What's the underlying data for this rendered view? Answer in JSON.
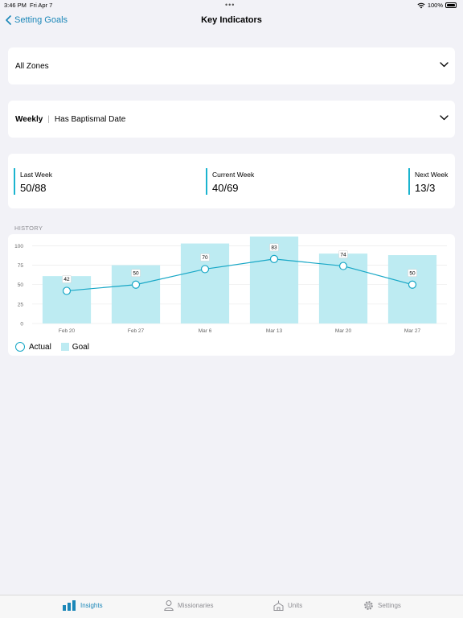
{
  "status_bar": {
    "time": "3:46 PM",
    "date": "Fri Apr 7",
    "dots": "•••",
    "battery": "100%"
  },
  "nav": {
    "back_label": "Setting Goals",
    "title": "Key Indicators"
  },
  "zone_filter": {
    "value": "All Zones"
  },
  "period_filter": {
    "period": "Weekly",
    "indicator": "Has Baptismal Date"
  },
  "kpis": {
    "last_week": {
      "label": "Last Week",
      "value": "50/88"
    },
    "current_week": {
      "label": "Current Week",
      "value": "40/69"
    },
    "next_week": {
      "label": "Next Week",
      "value": "13/3"
    }
  },
  "history_label": "HISTORY",
  "chart_data": {
    "type": "bar",
    "categories": [
      "Feb 20",
      "Feb 27",
      "Mar 6",
      "Mar 13",
      "Mar 20",
      "Mar 27"
    ],
    "series": [
      {
        "name": "Goal",
        "type": "bar",
        "values": [
          61,
          75,
          103,
          112,
          90,
          88
        ]
      },
      {
        "name": "Actual",
        "type": "line",
        "values": [
          42,
          50,
          70,
          83,
          74,
          50
        ]
      }
    ],
    "data_labels": [
      "42",
      "50",
      "70",
      "83",
      "74",
      "50"
    ],
    "yticks": [
      0,
      25,
      50,
      75,
      100
    ],
    "ylim": [
      0,
      115
    ],
    "grid": true,
    "legend_position": "bottom-left",
    "colors": {
      "bar": "#bdebf2",
      "line": "#17a7c6"
    }
  },
  "legend": {
    "actual": "Actual",
    "goal": "Goal"
  },
  "tabs": [
    {
      "label": "Insights",
      "icon": "bar-chart-icon",
      "active": true
    },
    {
      "label": "Missionaries",
      "icon": "person-icon",
      "active": false
    },
    {
      "label": "Units",
      "icon": "chapel-icon",
      "active": false
    },
    {
      "label": "Settings",
      "icon": "gear-icon",
      "active": false
    }
  ],
  "colors": {
    "accent": "#1b87b8",
    "kpi_bar": "#1bb4cf",
    "background": "#f2f2f7"
  }
}
